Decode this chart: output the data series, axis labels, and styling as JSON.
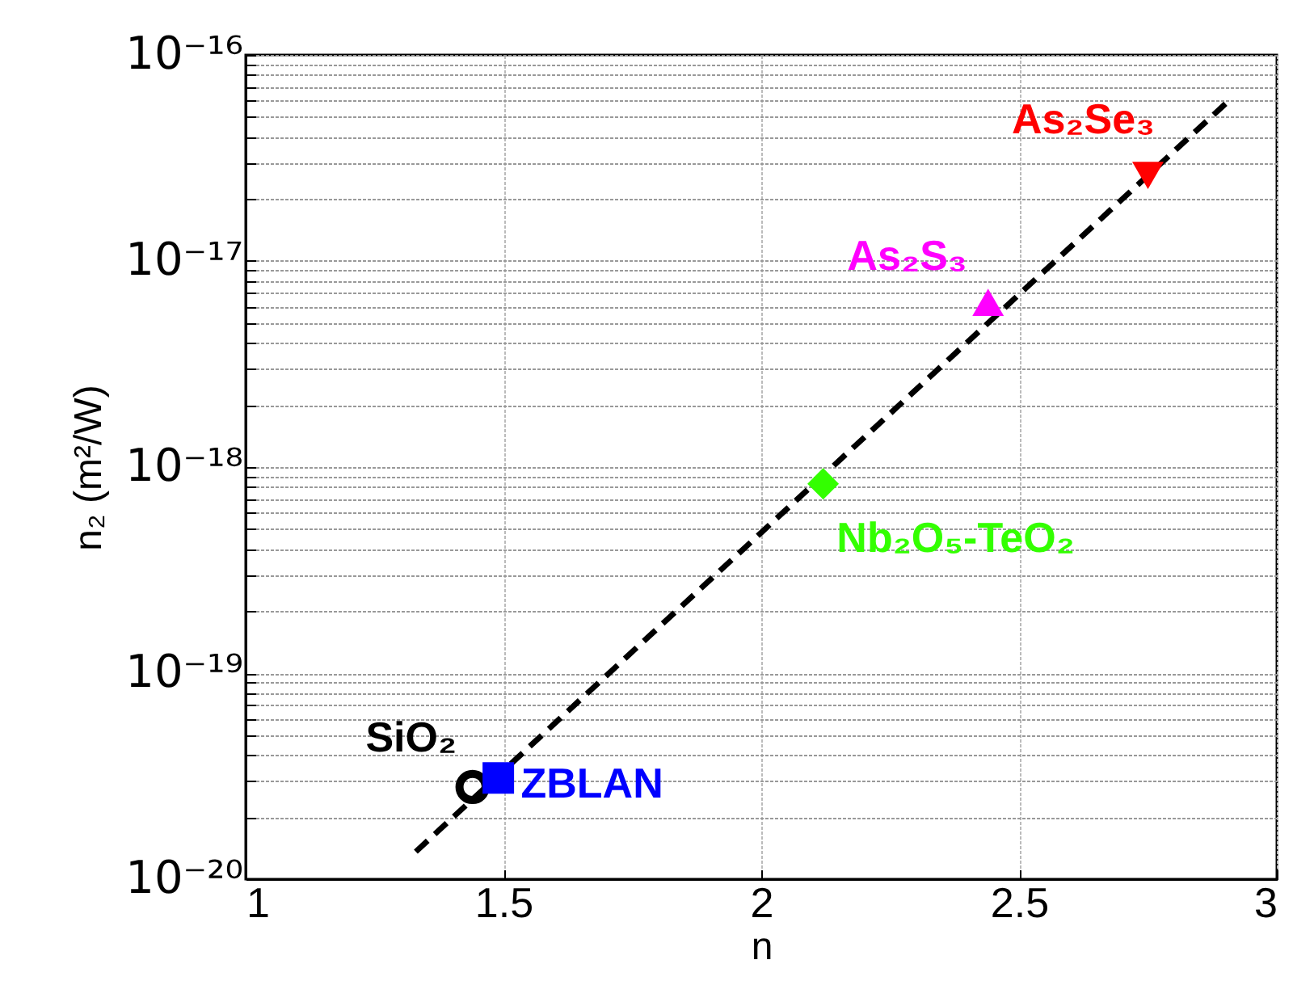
{
  "chart_data": {
    "type": "scatter",
    "xlabel": "n",
    "ylabel": "n₂ (m²/W)",
    "log": "y",
    "grid": true,
    "xlim": [
      1,
      3
    ],
    "xticks": [
      1,
      1.5,
      2,
      2.5,
      3
    ],
    "ylim": [
      1e-20,
      1e-16
    ],
    "yticks": [
      {
        "value": 1e-20,
        "label": "10⁻²⁰"
      },
      {
        "value": 2e-20,
        "label": null
      },
      {
        "value": 3e-20,
        "label": null
      },
      {
        "value": 4e-20,
        "label": null
      },
      {
        "value": 5e-20,
        "label": null
      },
      {
        "value": 6e-20,
        "label": null
      },
      {
        "value": 7e-20,
        "label": null
      },
      {
        "value": 8e-20,
        "label": null
      },
      {
        "value": 9e-20,
        "label": null
      },
      {
        "value": 1e-19,
        "label": "10⁻¹⁹"
      },
      {
        "value": 2e-19,
        "label": null
      },
      {
        "value": 3e-19,
        "label": null
      },
      {
        "value": 4e-19,
        "label": null
      },
      {
        "value": 5e-19,
        "label": null
      },
      {
        "value": 6e-19,
        "label": null
      },
      {
        "value": 7e-19,
        "label": null
      },
      {
        "value": 8e-19,
        "label": null
      },
      {
        "value": 9e-19,
        "label": null
      },
      {
        "value": 1e-18,
        "label": "10⁻¹⁸"
      },
      {
        "value": 2e-18,
        "label": null
      },
      {
        "value": 3e-18,
        "label": null
      },
      {
        "value": 4e-18,
        "label": null
      },
      {
        "value": 5e-18,
        "label": null
      },
      {
        "value": 6e-18,
        "label": null
      },
      {
        "value": 7e-18,
        "label": null
      },
      {
        "value": 8e-18,
        "label": null
      },
      {
        "value": 9e-18,
        "label": null
      },
      {
        "value": 1e-17,
        "label": "10⁻¹⁷"
      },
      {
        "value": 2e-17,
        "label": null
      },
      {
        "value": 3e-17,
        "label": null
      },
      {
        "value": 4e-17,
        "label": null
      },
      {
        "value": 5e-17,
        "label": null
      },
      {
        "value": 6e-17,
        "label": null
      },
      {
        "value": 7e-17,
        "label": null
      },
      {
        "value": 8e-17,
        "label": null
      },
      {
        "value": 9e-17,
        "label": null
      },
      {
        "value": 1e-16,
        "label": "10⁻¹⁶"
      }
    ],
    "series": [
      {
        "type": "line",
        "color": "#000000",
        "line_style": "dashed",
        "marker": "none",
        "x": [
          1.33,
          2.91
        ],
        "values": [
          1.36e-20,
          6.1e-17
        ]
      },
      {
        "name": "SiO₂",
        "color": "#000000",
        "marker": "circle",
        "x": [
          1.44
        ],
        "values": [
          2.8e-20
        ]
      },
      {
        "name": "ZBLAN",
        "color": "#0000ff",
        "marker": "square",
        "x": [
          1.49
        ],
        "values": [
          3.1e-20
        ]
      },
      {
        "name": "Nb₂O₅-TeO₂",
        "color": "#33ff00",
        "marker": "diamond",
        "x": [
          2.12
        ],
        "values": [
          8.3e-19
        ]
      },
      {
        "name": "As₂S₃",
        "color": "#ff00ff",
        "marker": "triangle",
        "x": [
          2.44
        ],
        "values": [
          6.3e-18
        ]
      },
      {
        "name": "As₂Se₃",
        "color": "#ff0000",
        "marker": "triangle-down",
        "x": [
          2.75
        ],
        "values": [
          2.6e-17
        ]
      }
    ]
  }
}
